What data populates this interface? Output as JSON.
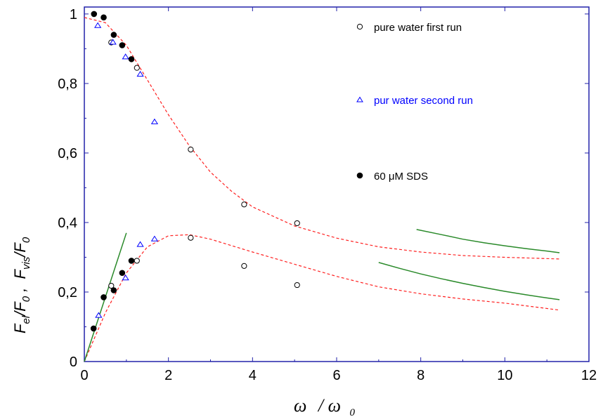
{
  "chart_data": {
    "type": "scatter",
    "xlabel": {
      "main": "ω",
      "slash": "/",
      "denom": "ω",
      "denom_sub": "0"
    },
    "ylabel": {
      "p1": "F",
      "p1_sub": "el",
      "p2": "/F",
      "p2_sub": "0",
      "sep": " ,  ",
      "p3": "F",
      "p3_sub": "vis",
      "p4": "/F",
      "p4_sub": "0"
    },
    "xlim": [
      0,
      12
    ],
    "ylim": [
      0,
      1.02
    ],
    "x_ticks": [
      0,
      2,
      4,
      6,
      8,
      10,
      12
    ],
    "x_tick_labels": [
      "0",
      "2",
      "4",
      "6",
      "8",
      "10",
      "12"
    ],
    "y_ticks": [
      0,
      0.2,
      0.4,
      0.6,
      0.8,
      1
    ],
    "y_tick_labels": [
      "0",
      "0,2",
      "0,4",
      "0,6",
      "0,8",
      "1"
    ],
    "grid": false,
    "legend_placement": "right, stacked vertically",
    "series": [
      {
        "name": "pure water first run",
        "marker": "open-circle",
        "color": "#000000",
        "points": [
          [
            0.64,
            0.918
          ],
          [
            1.25,
            0.845
          ],
          [
            2.53,
            0.61
          ],
          [
            3.8,
            0.452
          ],
          [
            5.06,
            0.398
          ],
          [
            0.64,
            0.218
          ],
          [
            1.25,
            0.29
          ],
          [
            2.53,
            0.356
          ],
          [
            3.8,
            0.275
          ],
          [
            5.06,
            0.22
          ]
        ]
      },
      {
        "name": "pur water second run",
        "marker": "open-triangle",
        "color": "#0000ff",
        "points": [
          [
            0.32,
            0.966
          ],
          [
            0.68,
            0.918
          ],
          [
            0.98,
            0.876
          ],
          [
            1.33,
            0.826
          ],
          [
            1.67,
            0.689
          ],
          [
            0.34,
            0.132
          ],
          [
            0.98,
            0.24
          ],
          [
            1.33,
            0.336
          ],
          [
            1.67,
            0.352
          ]
        ]
      },
      {
        "name": "60 μM SDS",
        "marker": "filled-circle",
        "color": "#000000",
        "points": [
          [
            0.23,
            1.0
          ],
          [
            0.46,
            0.99
          ],
          [
            0.7,
            0.94
          ],
          [
            0.9,
            0.91
          ],
          [
            1.12,
            0.87
          ],
          [
            0.22,
            0.095
          ],
          [
            0.46,
            0.185
          ],
          [
            0.7,
            0.205
          ],
          [
            0.9,
            0.255
          ],
          [
            1.12,
            0.29
          ]
        ]
      }
    ],
    "fit_curves": [
      {
        "style": "dashed",
        "color": "#ff2020",
        "points": [
          [
            0,
            0.99
          ],
          [
            0.5,
            0.975
          ],
          [
            1,
            0.91
          ],
          [
            1.5,
            0.81
          ],
          [
            2,
            0.71
          ],
          [
            2.5,
            0.62
          ],
          [
            3,
            0.545
          ],
          [
            3.5,
            0.49
          ],
          [
            4,
            0.445
          ],
          [
            5,
            0.39
          ],
          [
            6,
            0.355
          ],
          [
            7,
            0.33
          ],
          [
            8,
            0.315
          ],
          [
            9,
            0.305
          ],
          [
            10,
            0.3
          ],
          [
            11.3,
            0.295
          ]
        ]
      },
      {
        "style": "dashed",
        "color": "#ff2020",
        "points": [
          [
            0,
            0.0
          ],
          [
            0.5,
            0.14
          ],
          [
            1,
            0.255
          ],
          [
            1.5,
            0.33
          ],
          [
            2,
            0.362
          ],
          [
            2.5,
            0.365
          ],
          [
            3,
            0.352
          ],
          [
            4,
            0.315
          ],
          [
            5,
            0.28
          ],
          [
            6,
            0.245
          ],
          [
            7,
            0.215
          ],
          [
            8,
            0.195
          ],
          [
            9,
            0.18
          ],
          [
            10,
            0.168
          ],
          [
            11.3,
            0.148
          ]
        ]
      },
      {
        "style": "solid",
        "color": "#2a8a2a",
        "points": [
          [
            0,
            0.0
          ],
          [
            1.0,
            0.37
          ]
        ]
      },
      {
        "style": "solid",
        "color": "#2a8a2a",
        "points": [
          [
            7.9,
            0.38
          ],
          [
            8.5,
            0.365
          ],
          [
            9.0,
            0.352
          ],
          [
            9.5,
            0.342
          ],
          [
            10.0,
            0.333
          ],
          [
            10.5,
            0.325
          ],
          [
            11.0,
            0.318
          ],
          [
            11.3,
            0.313
          ]
        ]
      },
      {
        "style": "solid",
        "color": "#2a8a2a",
        "points": [
          [
            7.0,
            0.285
          ],
          [
            7.5,
            0.268
          ],
          [
            8.0,
            0.252
          ],
          [
            8.5,
            0.238
          ],
          [
            9.0,
            0.225
          ],
          [
            9.5,
            0.213
          ],
          [
            10.0,
            0.202
          ],
          [
            10.5,
            0.192
          ],
          [
            11.0,
            0.183
          ],
          [
            11.3,
            0.178
          ]
        ]
      }
    ]
  }
}
